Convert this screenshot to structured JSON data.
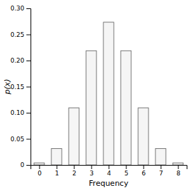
{
  "chart_data": {
    "type": "bar",
    "x": [
      0,
      1,
      2,
      3,
      4,
      5,
      6,
      7,
      8
    ],
    "values": [
      0.00390625,
      0.03125,
      0.109375,
      0.21875,
      0.2734375,
      0.21875,
      0.109375,
      0.03125,
      0.00390625
    ],
    "color": "#f5f5f5",
    "xlabel": "Frequency",
    "ylabel": "p(x)",
    "xlim": [
      -0.5,
      8.5
    ],
    "xticks": [
      0,
      1,
      2,
      3,
      4,
      5,
      6,
      7,
      8
    ],
    "ylim": [
      0,
      0.3
    ],
    "yticks": [
      0,
      0.05,
      {
        "value": 0.1,
        "label": "0.10"
      },
      0.15,
      {
        "value": 0.2,
        "label": "0.20"
      },
      0.25,
      {
        "value": 0.3,
        "label": "0.30"
      }
    ],
    "grid": false
  }
}
